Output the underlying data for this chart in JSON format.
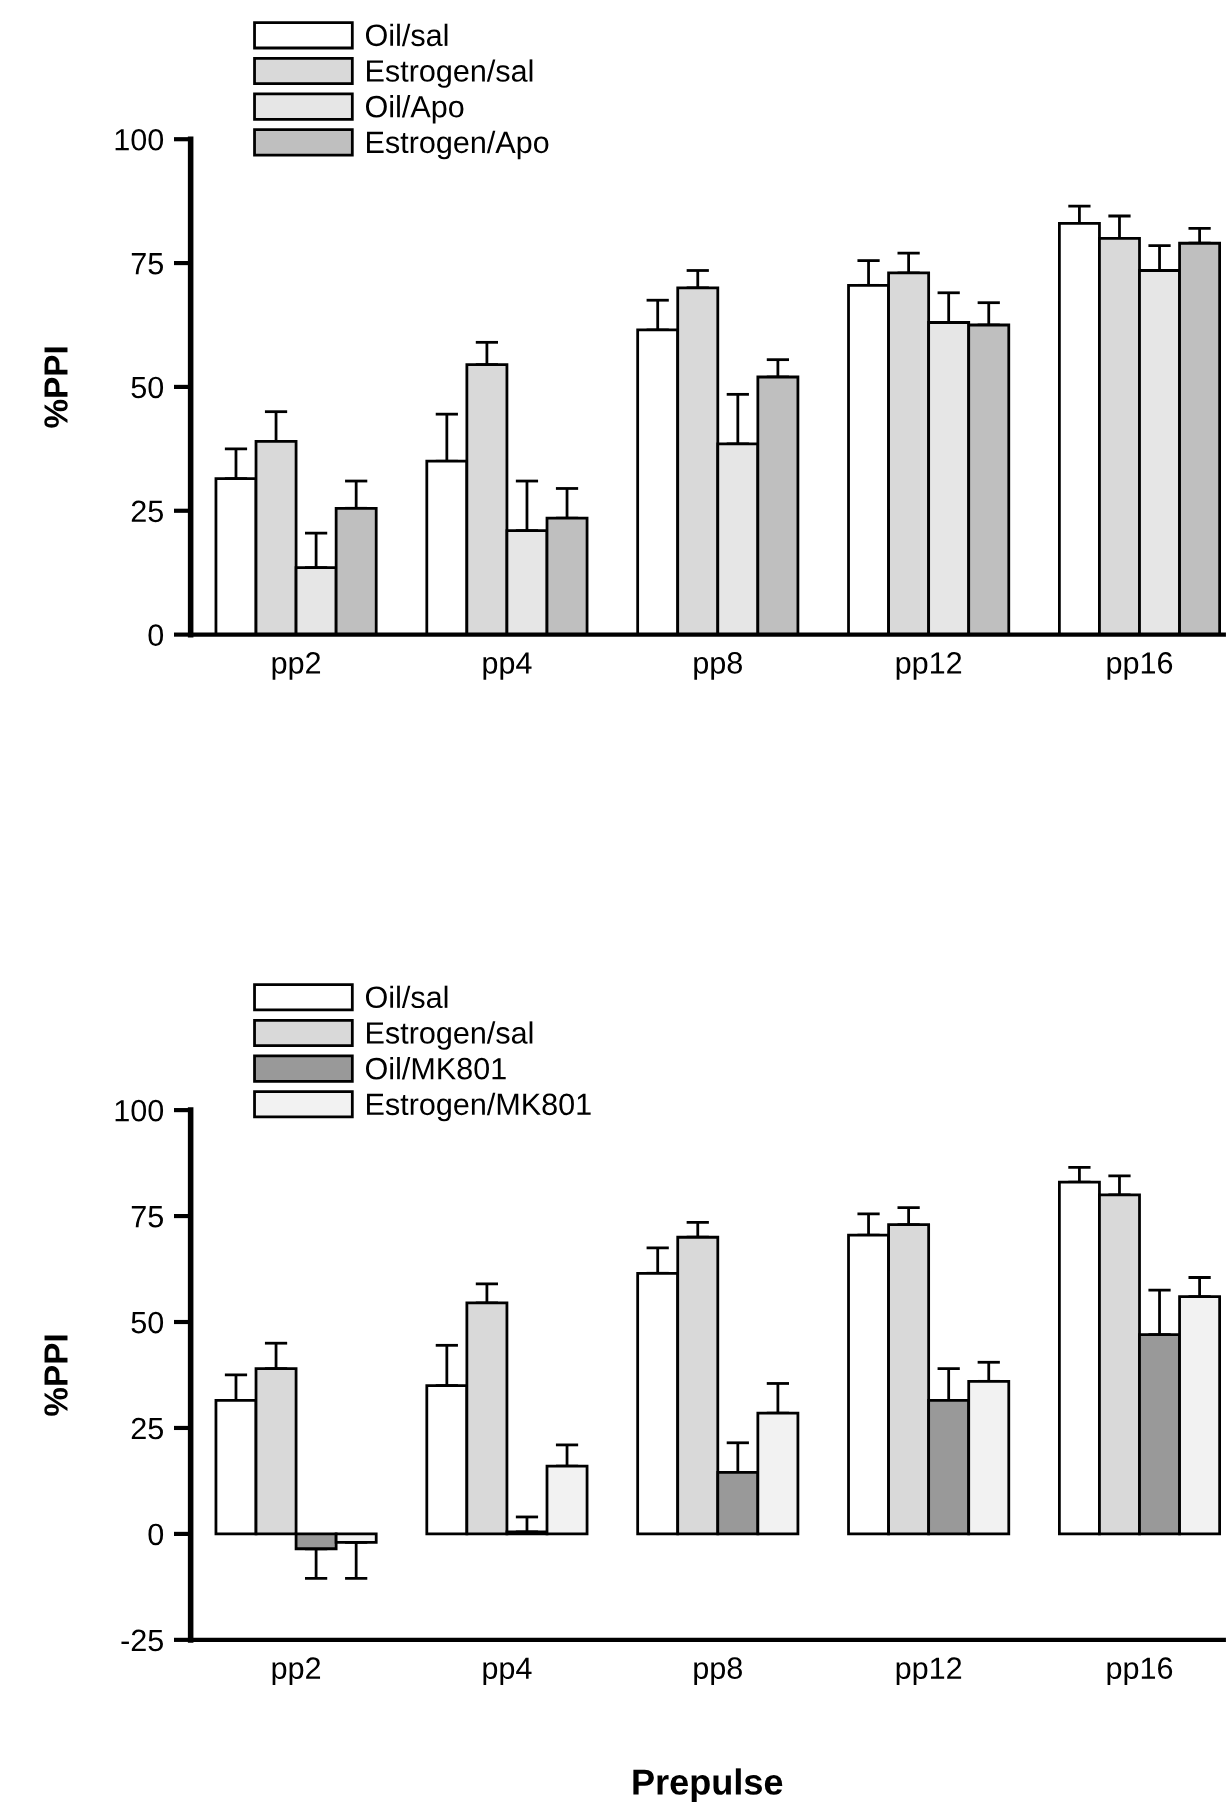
{
  "chart_data": [
    {
      "type": "bar",
      "ylabel": "%PPI",
      "categories": [
        "pp2",
        "pp4",
        "pp8",
        "pp12",
        "pp16"
      ],
      "ylim": [
        0,
        100
      ],
      "yticks": [
        0,
        25,
        50,
        75,
        100
      ],
      "grid": false,
      "legend": "top left",
      "series": [
        {
          "name": "Oil/sal",
          "color": "#ffffff",
          "values": [
            31.5,
            35,
            61.5,
            70.5,
            83
          ],
          "errors": [
            6,
            9.5,
            6,
            5,
            3.5
          ]
        },
        {
          "name": "Estrogen/sal",
          "color": "#d9d9d9",
          "values": [
            39,
            54.5,
            70,
            73,
            80
          ],
          "errors": [
            6,
            4.5,
            3.5,
            4,
            4.5
          ]
        },
        {
          "name": "Oil/Apo",
          "color": "#e6e6e6",
          "values": [
            13.5,
            21,
            38.5,
            63,
            73.5
          ],
          "errors": [
            7,
            10,
            10,
            6,
            5
          ]
        },
        {
          "name": "Estrogen/Apo",
          "color": "#bfbfbf",
          "values": [
            25.5,
            23.5,
            52,
            62.5,
            79
          ],
          "errors": [
            5.5,
            6,
            3.5,
            4.5,
            3
          ]
        }
      ]
    },
    {
      "type": "bar",
      "ylabel": "%PPI",
      "xlabel": "Prepulse",
      "categories": [
        "pp2",
        "pp4",
        "pp8",
        "pp12",
        "pp16"
      ],
      "ylim": [
        -25,
        100
      ],
      "yticks": [
        -25,
        0,
        25,
        50,
        75,
        100
      ],
      "grid": false,
      "legend": "top left",
      "series": [
        {
          "name": "Oil/sal",
          "color": "#ffffff",
          "values": [
            31.5,
            35,
            61.5,
            70.5,
            83
          ],
          "errors": [
            6,
            9.5,
            6,
            5,
            3.5
          ]
        },
        {
          "name": "Estrogen/sal",
          "color": "#d9d9d9",
          "values": [
            39,
            54.5,
            70,
            73,
            80
          ],
          "errors": [
            6,
            4.5,
            3.5,
            4,
            4.5
          ]
        },
        {
          "name": "Oil/MK801",
          "color": "#999999",
          "values": [
            -3.5,
            0.5,
            14.5,
            31.5,
            47
          ],
          "errors": [
            7,
            3.5,
            7,
            7.5,
            10.5
          ]
        },
        {
          "name": "Estrogen/MK801",
          "color": "#f2f2f2",
          "values": [
            -2,
            16,
            28.5,
            36,
            56
          ],
          "errors": [
            8.5,
            5,
            7,
            4.5,
            4.5
          ]
        }
      ]
    }
  ]
}
